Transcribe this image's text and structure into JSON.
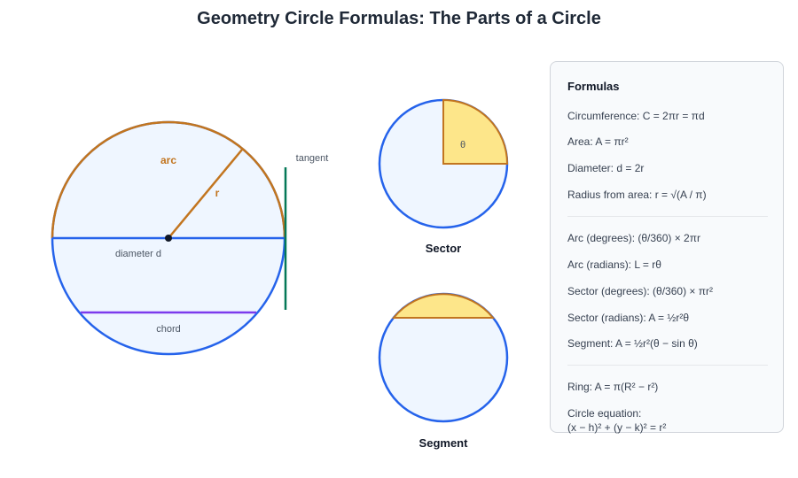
{
  "title": "Geometry Circle Formulas: The Parts of a Circle",
  "colors": {
    "circle_stroke": "#2563eb",
    "circle_fill": "#eff6ff",
    "arc_stroke": "#c2751f",
    "highlight_fill": "#fde68a",
    "chord_stroke": "#7c3aed",
    "tangent_stroke": "#047857",
    "panel_border": "#d1d5db",
    "panel_bg": "#f8fafc"
  },
  "main_circle": {
    "arc_label": "arc",
    "radius_label": "r",
    "diameter_label": "diameter d",
    "chord_label": "chord",
    "tangent_label": "tangent"
  },
  "sector": {
    "angle_label": "θ",
    "caption": "Sector"
  },
  "segment": {
    "caption": "Segment"
  },
  "formulas": {
    "heading": "Formulas",
    "circumference": "Circumference: C = 2πr = πd",
    "area": "Area: A = πr²",
    "diameter": "Diameter: d = 2r",
    "radius_from_area": "Radius from area: r = √(A / π)",
    "arc_degrees": "Arc (degrees): (θ/360) × 2πr",
    "arc_radians": "Arc (radians): L = rθ",
    "sector_degrees": "Sector (degrees): (θ/360) × πr²",
    "sector_radians": "Sector (radians): A = ½r²θ",
    "segment": "Segment: A = ½r²(θ − sin θ)",
    "ring": "Ring: A = π(R² − r²)",
    "circle_equation_label": "Circle equation:",
    "circle_equation": "(x − h)² + (y − k)² = r²"
  }
}
